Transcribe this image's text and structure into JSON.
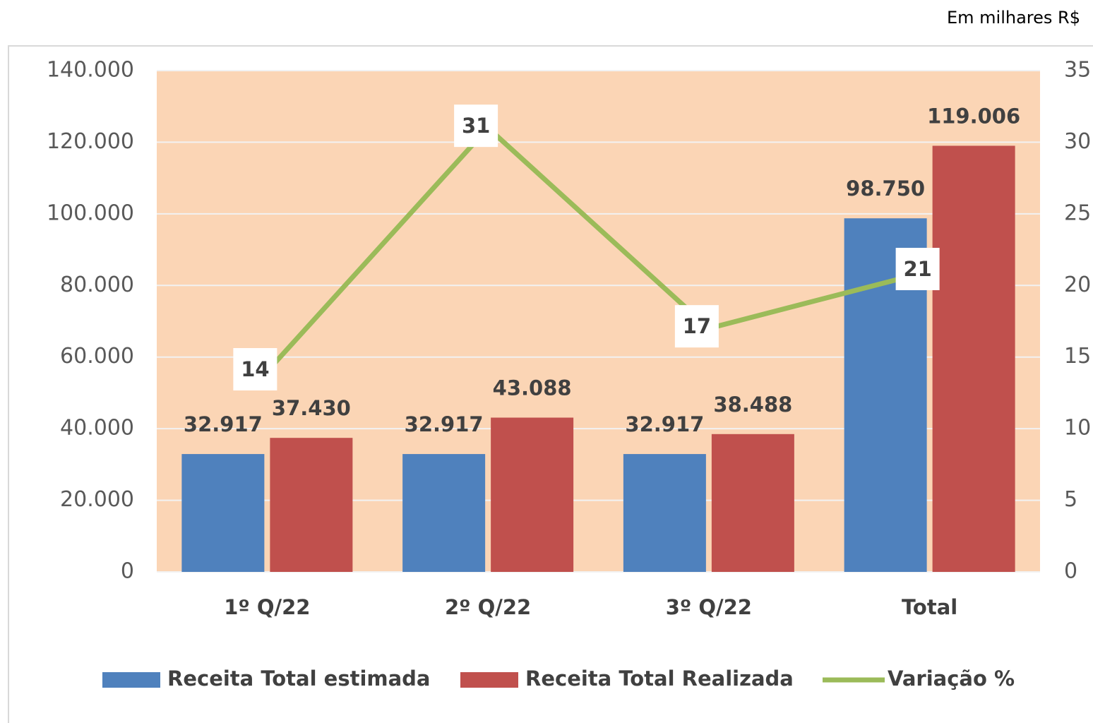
{
  "chart_data": {
    "type": "bar",
    "annotation": "Em milhares R$",
    "categories": [
      "1º Q/22",
      "2º Q/22",
      "3º Q/22",
      "Total"
    ],
    "series": [
      {
        "name": "Receita Total estimada",
        "type": "bar",
        "color": "#4f81bd",
        "values": [
          32917,
          32917,
          32917,
          98750
        ],
        "value_labels": [
          "32.917",
          "32.917",
          "32.917",
          "98.750"
        ]
      },
      {
        "name": "Receita Total Realizada",
        "type": "bar",
        "color": "#c0504d",
        "values": [
          37430,
          43088,
          38488,
          119006
        ],
        "value_labels": [
          "37.430",
          "43.088",
          "38.488",
          "119.006"
        ]
      },
      {
        "name": "Variação %",
        "type": "line",
        "axis": "y2",
        "color": "#9bbb59",
        "values": [
          14,
          31,
          17,
          21
        ]
      }
    ],
    "ylim": [
      0,
      140000
    ],
    "yticks": [
      0,
      {
        "value": 20000,
        "label": "20.000"
      },
      {
        "value": 40000,
        "label": "40.000"
      },
      {
        "value": 60000,
        "label": "60.000"
      },
      {
        "value": 80000,
        "label": "80.000"
      },
      {
        "value": 100000,
        "label": "100.000"
      },
      {
        "value": 120000,
        "label": "120.000"
      },
      {
        "value": 140000,
        "label": "140.000"
      }
    ],
    "y2lim": [
      0,
      35
    ],
    "y2ticks": [
      0,
      5,
      10,
      15,
      20,
      25,
      30,
      35
    ],
    "grid": true,
    "plot_background": "#fbd5b5",
    "legend": "bottom"
  }
}
